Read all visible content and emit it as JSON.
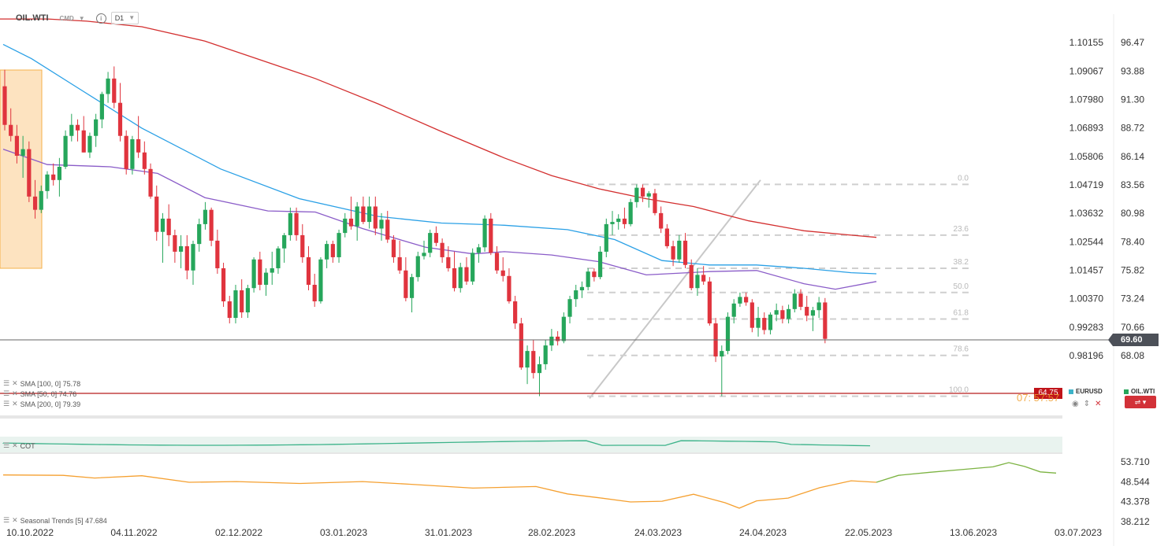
{
  "header": {
    "symbol": "OIL.WTI",
    "instrument_type": "CMD",
    "timeframe": "D1"
  },
  "last_price": "69.60",
  "horizontal_level": "64.75",
  "ghost_text": "07: 57:57",
  "indicators": [
    {
      "label": "SMA [100, 0] 75.78",
      "color": "#2aa0e6"
    },
    {
      "label": "SMA [50, 0] 74.76",
      "color": "#8a5cc8"
    },
    {
      "label": "SMA [200, 0] 79.39",
      "color": "#d32f2f"
    }
  ],
  "cot_label": "COT",
  "seasonal_label": "Seasonal Trends [5] 47.684",
  "eurusd_legend": "EURUSD",
  "oilwti_legend": "OIL.WTI",
  "colors": {
    "bull": "#26a65b",
    "bear": "#e0343e",
    "sma100": "#2aa0e6",
    "sma50": "#8a5cc8",
    "sma200": "#d32f2f",
    "seasonal_past": "#f5a030",
    "seasonal_future": "#7cb342",
    "cot": "#3cb38a",
    "fib": "#cfcfcf",
    "zone": "#fde3c0"
  },
  "chart_data": [
    {
      "type": "candlestick",
      "x_tick_labels": [
        "10.10.2022",
        "04.11.2022",
        "02.12.2022",
        "03.01.2023",
        "31.01.2023",
        "28.02.2023",
        "24.03.2023",
        "24.04.2023",
        "22.05.2023",
        "13.06.2023",
        "03.07.2023"
      ],
      "y_left_ticks": [
        "1.10155",
        "1.09067",
        "1.07980",
        "1.06893",
        "1.05806",
        "1.04719",
        "1.03632",
        "1.02544",
        "1.01457",
        "1.00370",
        "0.99283",
        "0.98196"
      ],
      "y_right_ticks": [
        96.47,
        93.88,
        91.3,
        88.72,
        86.14,
        83.56,
        80.98,
        78.4,
        75.82,
        73.24,
        70.66,
        68.08
      ],
      "ylim": [
        66.2,
        98.3
      ],
      "fibonacci": [
        {
          "level": "0.0",
          "price": 83.6
        },
        {
          "level": "23.6",
          "price": 79.0
        },
        {
          "level": "38.2",
          "price": 76.0
        },
        {
          "level": "50.0",
          "price": 73.8
        },
        {
          "level": "61.8",
          "price": 71.4
        },
        {
          "level": "78.6",
          "price": 68.1
        },
        {
          "level": "100.0",
          "price": 64.4
        }
      ],
      "candles_ohlc": [
        [
          92.5,
          94.0,
          88.5,
          89.0
        ],
        [
          89.0,
          90.5,
          87.5,
          88.0
        ],
        [
          88.0,
          89.0,
          85.5,
          86.2
        ],
        [
          86.2,
          88.0,
          84.2,
          86.8
        ],
        [
          86.8,
          87.5,
          82.0,
          82.5
        ],
        [
          82.5,
          84.0,
          80.5,
          81.3
        ],
        [
          81.3,
          83.5,
          81.0,
          83.0
        ],
        [
          83.0,
          84.8,
          82.3,
          84.5
        ],
        [
          84.5,
          85.5,
          83.5,
          84.0
        ],
        [
          84.0,
          86.0,
          82.5,
          85.2
        ],
        [
          85.2,
          88.5,
          85.0,
          88.0
        ],
        [
          88.0,
          90.0,
          87.5,
          89.0
        ],
        [
          89.0,
          89.5,
          87.5,
          88.5
        ],
        [
          88.5,
          89.8,
          86.5,
          86.5
        ],
        [
          86.5,
          88.3,
          86.0,
          88.0
        ],
        [
          88.0,
          90.0,
          87.0,
          89.5
        ],
        [
          89.5,
          92.0,
          88.7,
          91.8
        ],
        [
          91.8,
          93.8,
          91.0,
          93.2
        ],
        [
          93.2,
          94.3,
          90.5,
          91.0
        ],
        [
          91.0,
          92.8,
          87.5,
          88.0
        ],
        [
          88.0,
          88.5,
          84.5,
          85.0
        ],
        [
          85.0,
          88.0,
          84.5,
          87.7
        ],
        [
          87.7,
          89.8,
          86.0,
          86.5
        ],
        [
          86.5,
          87.5,
          84.5,
          85.0
        ],
        [
          85.0,
          85.5,
          82.3,
          82.5
        ],
        [
          82.5,
          83.5,
          78.5,
          79.3
        ],
        [
          79.3,
          81.0,
          76.5,
          80.5
        ],
        [
          80.5,
          81.8,
          78.0,
          79.0
        ],
        [
          79.0,
          79.5,
          76.5,
          77.5
        ],
        [
          77.5,
          79.0,
          76.0,
          78.0
        ],
        [
          78.0,
          79.0,
          75.0,
          75.8
        ],
        [
          75.8,
          78.5,
          74.5,
          78.2
        ],
        [
          78.2,
          80.5,
          77.5,
          80.0
        ],
        [
          80.0,
          82.0,
          79.5,
          81.3
        ],
        [
          81.3,
          81.5,
          78.0,
          78.5
        ],
        [
          78.5,
          79.5,
          75.5,
          76.0
        ],
        [
          76.0,
          76.5,
          72.5,
          73.0
        ],
        [
          73.0,
          73.5,
          71.0,
          71.5
        ],
        [
          71.5,
          74.5,
          71.0,
          74.0
        ],
        [
          74.0,
          75.0,
          71.5,
          72.0
        ],
        [
          72.0,
          74.5,
          71.5,
          74.2
        ],
        [
          74.2,
          77.0,
          73.8,
          76.8
        ],
        [
          76.8,
          77.5,
          74.0,
          74.5
        ],
        [
          74.5,
          76.0,
          73.5,
          75.6
        ],
        [
          75.6,
          77.5,
          74.5,
          76.0
        ],
        [
          76.0,
          78.0,
          75.5,
          77.8
        ],
        [
          77.8,
          79.2,
          76.5,
          79.0
        ],
        [
          79.0,
          81.5,
          78.5,
          81.0
        ],
        [
          81.0,
          81.5,
          78.5,
          79.0
        ],
        [
          79.0,
          80.0,
          76.5,
          77.0
        ],
        [
          77.0,
          78.0,
          74.0,
          74.5
        ],
        [
          74.5,
          75.5,
          72.5,
          73.0
        ],
        [
          73.0,
          77.0,
          72.8,
          76.8
        ],
        [
          76.8,
          78.5,
          76.0,
          78.2
        ],
        [
          78.2,
          78.5,
          76.5,
          77.0
        ],
        [
          77.0,
          79.5,
          76.5,
          79.2
        ],
        [
          79.2,
          81.0,
          78.8,
          80.5
        ],
        [
          80.5,
          82.5,
          79.5,
          79.8
        ],
        [
          79.8,
          82.0,
          78.5,
          81.6
        ],
        [
          81.6,
          82.5,
          80.0,
          80.2
        ],
        [
          80.2,
          82.5,
          79.6,
          81.6
        ],
        [
          81.6,
          82.5,
          79.0,
          79.6
        ],
        [
          79.6,
          81.0,
          78.5,
          80.4
        ],
        [
          80.4,
          81.2,
          78.3,
          78.6
        ],
        [
          78.6,
          79.0,
          76.5,
          77.0
        ],
        [
          77.0,
          78.5,
          75.5,
          75.8
        ],
        [
          75.8,
          77.0,
          73.0,
          73.3
        ],
        [
          73.3,
          75.5,
          72.0,
          75.2
        ],
        [
          75.2,
          77.5,
          74.8,
          77.1
        ],
        [
          77.1,
          78.5,
          76.8,
          77.4
        ],
        [
          77.4,
          79.5,
          77.0,
          79.2
        ],
        [
          79.2,
          79.8,
          78.0,
          78.3
        ],
        [
          78.3,
          78.7,
          76.5,
          77.0
        ],
        [
          77.0,
          78.0,
          75.7,
          76.0
        ],
        [
          76.0,
          77.5,
          73.9,
          74.2
        ],
        [
          74.2,
          76.5,
          73.8,
          76.1
        ],
        [
          76.1,
          77.0,
          74.5,
          74.8
        ],
        [
          74.8,
          77.8,
          74.5,
          77.4
        ],
        [
          77.4,
          78.2,
          76.5,
          77.9
        ],
        [
          77.9,
          80.8,
          77.5,
          80.5
        ],
        [
          80.5,
          81.0,
          77.2,
          77.4
        ],
        [
          77.4,
          78.0,
          75.5,
          75.8
        ],
        [
          75.8,
          77.0,
          74.8,
          75.3
        ],
        [
          75.3,
          76.0,
          72.8,
          73.0
        ],
        [
          73.0,
          73.5,
          70.5,
          71.0
        ],
        [
          71.0,
          71.5,
          66.8,
          67.0
        ],
        [
          67.0,
          69.0,
          65.5,
          68.5
        ],
        [
          68.5,
          69.5,
          66.0,
          66.5
        ],
        [
          66.5,
          68.0,
          64.4,
          67.3
        ],
        [
          67.3,
          69.5,
          66.8,
          69.0
        ],
        [
          69.0,
          70.5,
          68.5,
          69.8
        ],
        [
          69.8,
          70.3,
          69.0,
          69.4
        ],
        [
          69.4,
          72.0,
          69.2,
          71.6
        ],
        [
          71.6,
          73.5,
          71.0,
          73.2
        ],
        [
          73.2,
          74.5,
          72.5,
          74.0
        ],
        [
          74.0,
          74.8,
          73.3,
          74.3
        ],
        [
          74.3,
          76.0,
          74.0,
          75.7
        ],
        [
          75.7,
          76.0,
          74.8,
          75.2
        ],
        [
          75.2,
          78.0,
          75.0,
          77.5
        ],
        [
          77.5,
          80.5,
          77.0,
          80.0
        ],
        [
          80.0,
          81.2,
          79.0,
          80.2
        ],
        [
          80.2,
          80.9,
          79.5,
          80.5
        ],
        [
          80.5,
          81.5,
          79.6,
          80.0
        ],
        [
          80.0,
          82.3,
          79.8,
          82.0
        ],
        [
          82.0,
          83.6,
          81.5,
          83.3
        ],
        [
          83.3,
          83.6,
          82.0,
          82.5
        ],
        [
          82.5,
          83.0,
          81.5,
          82.8
        ],
        [
          82.8,
          83.2,
          80.8,
          81.0
        ],
        [
          81.0,
          81.6,
          79.2,
          79.6
        ],
        [
          79.6,
          80.0,
          77.8,
          78.0
        ],
        [
          78.0,
          78.5,
          76.2,
          76.8
        ],
        [
          76.8,
          79.0,
          76.5,
          78.5
        ],
        [
          78.5,
          79.2,
          76.0,
          76.3
        ],
        [
          76.3,
          76.8,
          74.0,
          74.2
        ],
        [
          74.2,
          76.0,
          73.5,
          75.4
        ],
        [
          75.4,
          76.2,
          74.5,
          74.8
        ],
        [
          74.8,
          75.2,
          70.8,
          71.0
        ],
        [
          71.0,
          71.5,
          67.5,
          68.0
        ],
        [
          68.0,
          69.0,
          64.4,
          68.5
        ],
        [
          68.5,
          72.0,
          68.2,
          71.6
        ],
        [
          71.6,
          73.2,
          71.0,
          72.8
        ],
        [
          72.8,
          73.8,
          72.5,
          73.4
        ],
        [
          73.4,
          73.8,
          72.6,
          72.9
        ],
        [
          72.9,
          73.2,
          70.2,
          70.6
        ],
        [
          70.6,
          72.5,
          69.8,
          71.5
        ],
        [
          71.5,
          72.0,
          70.0,
          70.4
        ],
        [
          70.4,
          72.0,
          70.0,
          71.8
        ],
        [
          71.8,
          72.8,
          71.2,
          72.2
        ],
        [
          72.2,
          72.6,
          71.0,
          71.4
        ],
        [
          71.4,
          72.7,
          71.0,
          72.3
        ],
        [
          72.3,
          74.1,
          72.0,
          73.7
        ],
        [
          73.7,
          74.1,
          72.2,
          72.5
        ],
        [
          72.5,
          73.5,
          71.2,
          71.7
        ],
        [
          71.7,
          72.5,
          70.3,
          72.2
        ],
        [
          72.2,
          73.4,
          71.5,
          72.9
        ],
        [
          72.9,
          73.3,
          69.2,
          69.6
        ]
      ],
      "sma200": [
        [
          0,
          98.6
        ],
        [
          60,
          98.6
        ],
        [
          110,
          98.4
        ],
        [
          180,
          97.9
        ],
        [
          260,
          96.6
        ],
        [
          330,
          94.9
        ],
        [
          400,
          93.2
        ],
        [
          480,
          90.9
        ],
        [
          560,
          88.4
        ],
        [
          640,
          86.0
        ],
        [
          700,
          84.4
        ],
        [
          760,
          83.2
        ],
        [
          820,
          82.3
        ],
        [
          880,
          81.6
        ],
        [
          950,
          80.3
        ],
        [
          1020,
          79.4
        ],
        [
          1080,
          79.0
        ],
        [
          1112,
          78.8
        ]
      ],
      "sma100": [
        [
          4,
          96.3
        ],
        [
          40,
          95.0
        ],
        [
          100,
          92.3
        ],
        [
          180,
          88.7
        ],
        [
          280,
          85.0
        ],
        [
          380,
          82.3
        ],
        [
          480,
          80.7
        ],
        [
          560,
          80.1
        ],
        [
          640,
          79.9
        ],
        [
          720,
          79.5
        ],
        [
          780,
          78.6
        ],
        [
          840,
          76.7
        ],
        [
          900,
          76.3
        ],
        [
          960,
          76.3
        ],
        [
          1020,
          76.0
        ],
        [
          1080,
          75.6
        ],
        [
          1112,
          75.5
        ]
      ],
      "sma50": [
        [
          4,
          86.8
        ],
        [
          60,
          85.4
        ],
        [
          140,
          85.2
        ],
        [
          200,
          84.6
        ],
        [
          260,
          82.4
        ],
        [
          340,
          81.2
        ],
        [
          400,
          81.1
        ],
        [
          460,
          79.6
        ],
        [
          540,
          77.9
        ],
        [
          600,
          77.3
        ],
        [
          640,
          77.5
        ],
        [
          700,
          77.2
        ],
        [
          760,
          76.6
        ],
        [
          820,
          75.4
        ],
        [
          900,
          75.7
        ],
        [
          960,
          75.8
        ],
        [
          1020,
          74.6
        ],
        [
          1060,
          74.1
        ],
        [
          1112,
          74.8
        ]
      ],
      "seasonal": [
        [
          4,
          50.3
        ],
        [
          80,
          50.2
        ],
        [
          120,
          49.5
        ],
        [
          180,
          50.1
        ],
        [
          240,
          48.4
        ],
        [
          300,
          48.6
        ],
        [
          380,
          48.1
        ],
        [
          460,
          48.6
        ],
        [
          520,
          47.9
        ],
        [
          600,
          46.9
        ],
        [
          680,
          47.3
        ],
        [
          720,
          45.4
        ],
        [
          760,
          44.4
        ],
        [
          800,
          43.3
        ],
        [
          840,
          43.5
        ],
        [
          880,
          45.3
        ],
        [
          920,
          43.1
        ],
        [
          938,
          41.7
        ],
        [
          960,
          43.6
        ],
        [
          1000,
          44.3
        ],
        [
          1040,
          47.0
        ],
        [
          1080,
          48.8
        ],
        [
          1112,
          48.4
        ]
      ],
      "seasonal_forecast": [
        [
          1112,
          48.4
        ],
        [
          1140,
          50.2
        ],
        [
          1180,
          51.0
        ],
        [
          1220,
          51.7
        ],
        [
          1260,
          52.4
        ],
        [
          1280,
          53.5
        ],
        [
          1300,
          52.5
        ],
        [
          1320,
          51.1
        ],
        [
          1340,
          50.8
        ]
      ]
    }
  ]
}
